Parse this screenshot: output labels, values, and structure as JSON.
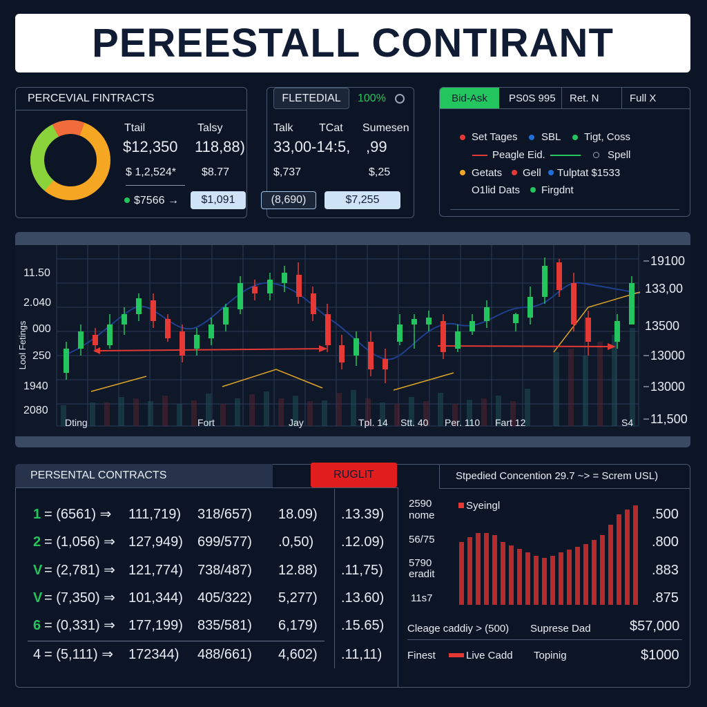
{
  "header": {
    "title": "PEREESTALL CONTIRANT"
  },
  "summary_panel": {
    "title": "PERCEVIAL FINTRACTS",
    "col_headers": [
      "Ttail",
      "Talsy"
    ],
    "main_values": [
      "$12,350",
      "118,88)"
    ],
    "sub_values": [
      "$ 1,2,524*",
      "$8.77"
    ],
    "footer_value": "$7566 →",
    "pill": "$1,091"
  },
  "detail_panel": {
    "tabs": [
      "FLETEDIAL",
      "100%"
    ],
    "col_headers": [
      "Talk",
      "TCat",
      "Sumesen"
    ],
    "main_values": [
      "33,00-14:5,",
      ",99"
    ],
    "sub_values": [
      "$,737",
      "$,25"
    ],
    "pills": [
      "(8,690)",
      "$7,255"
    ]
  },
  "bid_panel": {
    "tabs": [
      "Bid-Ask",
      "PS0S 995",
      "Ret. N",
      "Full X"
    ],
    "legend": [
      "Set Tages",
      "SBL",
      "Tigt, Coss",
      "Peagle Eid.",
      "Spell",
      "Getats",
      "Gell",
      "Tulptat $1533",
      "O1lid Dats",
      "Firgdnt"
    ]
  },
  "main_chart": {
    "y_label": "Lool Fetings",
    "left_labels": [
      "11.50",
      "2.040",
      "000",
      "250",
      "1940",
      "2080"
    ],
    "right_labels": [
      "19100",
      "133,00",
      "13500",
      "13000",
      "13000",
      "11,500"
    ],
    "x_labels": [
      "Dting",
      "Fort",
      "Jay",
      "Tpl. 14",
      "Stt. 40",
      "Per. 110",
      "Fart 12",
      "S4"
    ]
  },
  "contracts": {
    "title": "PERSENTAL CONTRACTS",
    "button": "RUGLIT",
    "rows": [
      {
        "key": "1",
        "ref": "= (6561) ⇒",
        "cells": [
          "111,719)",
          "318/657)",
          "18.09)",
          ".13.39)"
        ]
      },
      {
        "key": "2",
        "ref": "= (1,056) ⇒",
        "cells": [
          "127,949)",
          "699/577)",
          ".0,50)",
          ".12.09)"
        ]
      },
      {
        "key": "V",
        "ref": "= (2,781) ⇒",
        "cells": [
          "121,774)",
          "738/487)",
          "12.88)",
          ".11,75)"
        ]
      },
      {
        "key": "V",
        "ref": "= (7,350) ⇒",
        "cells": [
          "101,344)",
          "405/322)",
          "5,277)",
          ".13.60)"
        ]
      },
      {
        "key": "6",
        "ref": "= (0,331) ⇒",
        "cells": [
          "177,199)",
          "835/581)",
          "6,179)",
          ".15.65)"
        ]
      },
      {
        "key": "4",
        "ref": "= (5,111) ⇒",
        "cells": [
          "172344)",
          "488/661)",
          "4,602)",
          ".11,11)"
        ]
      }
    ]
  },
  "concentration": {
    "title": "Stpedied Concention 29.7 ~> = Screm USL)",
    "legend": "Syeingl",
    "left_labels": [
      "2590",
      "nome",
      "56/75",
      "5790",
      "eradit",
      "11s7"
    ],
    "right_labels": [
      ".500",
      ".800",
      ".883",
      ".875"
    ],
    "footer_rows": [
      [
        "Cleage caddiy > (500)",
        "Suprese Dad",
        "$57,000"
      ],
      [
        "Finest",
        "Live Cadd",
        "Topinig",
        "$1000"
      ]
    ]
  }
}
